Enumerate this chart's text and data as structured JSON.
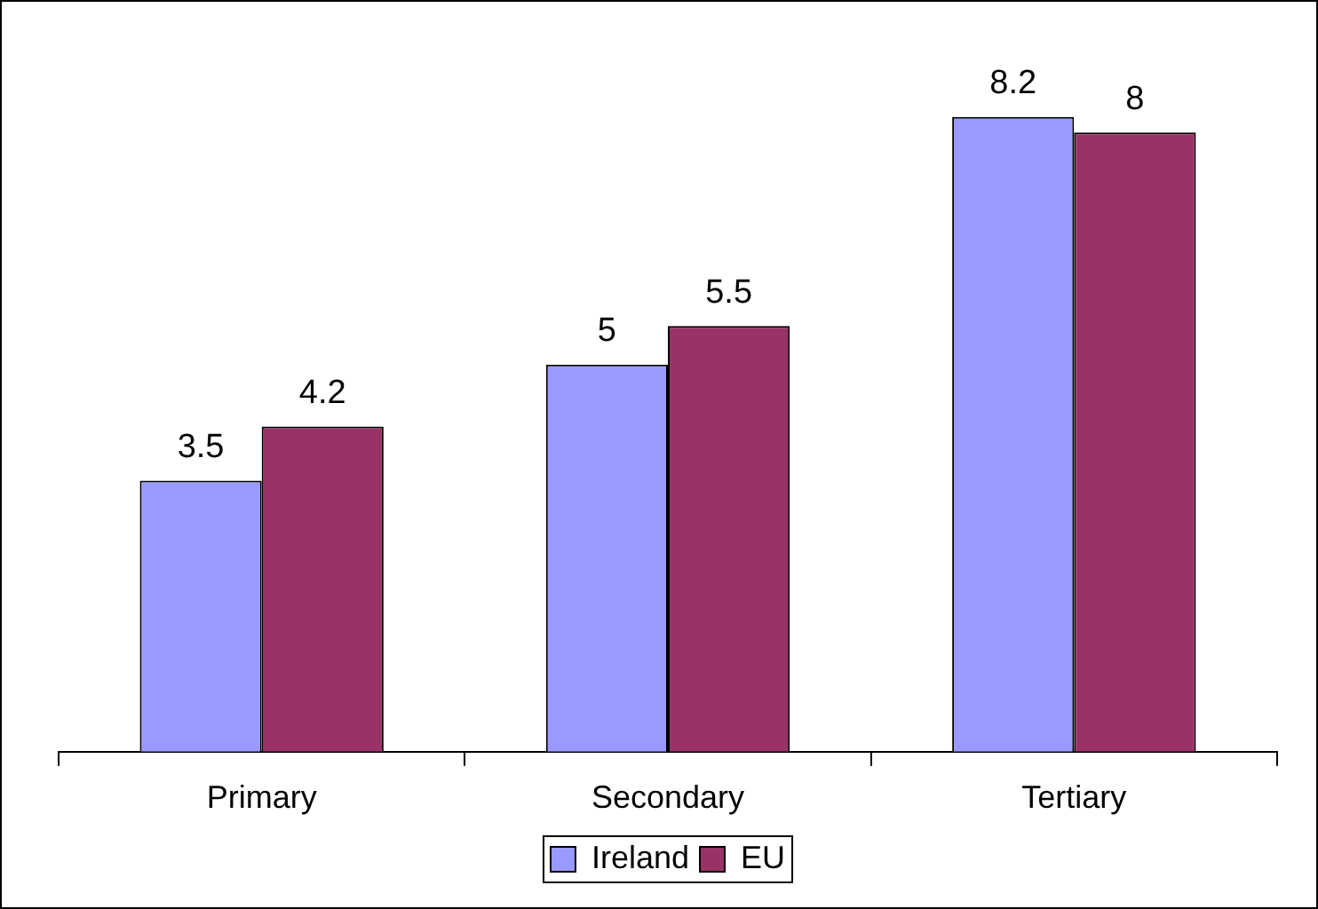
{
  "chart_data": {
    "type": "bar",
    "categories": [
      "Primary",
      "Secondary",
      "Tertiary"
    ],
    "series": [
      {
        "name": "Ireland",
        "color": "#9999ff",
        "values": [
          3.5,
          5,
          8.2
        ]
      },
      {
        "name": "EU",
        "color": "#993366",
        "values": [
          4.2,
          5.5,
          8
        ]
      }
    ],
    "data_labels": true,
    "grid": false,
    "legend": "bottom"
  }
}
